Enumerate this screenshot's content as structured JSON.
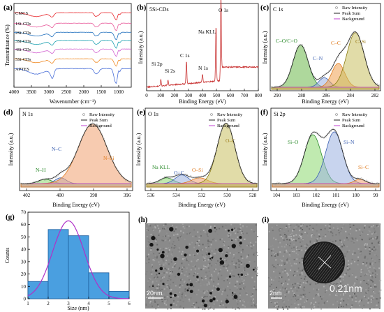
{
  "panels": {
    "a": {
      "label": "(a)",
      "xlabel": "Wavenumber (cm⁻¹)",
      "ylabel": "Transmittance (%)",
      "xticks": [
        "4000",
        "3500",
        "3000",
        "2500",
        "2000",
        "1500",
        "1000"
      ],
      "legend": [
        "CMCS",
        "1Si-CDs",
        "2Si-CDs",
        "3Si-CDs",
        "4Si-CDs",
        "5Si-CDs",
        "APTES"
      ],
      "colors": [
        "#e8262b",
        "#e85a9b",
        "#1f6fbd",
        "#1aa0b0",
        "#d25fd0",
        "#f08a24",
        "#4a6fd8"
      ]
    },
    "b": {
      "label": "(b)",
      "title": "5Si-CDs",
      "xlabel": "Binding Energy (eV)",
      "ylabel": "Intensity (a.u.)",
      "xticks": [
        "0",
        "100",
        "200",
        "300",
        "400",
        "500",
        "600",
        "700",
        "800"
      ],
      "peaks": [
        "Si 2p",
        "Si 2s",
        "C 1s",
        "N 1s",
        "Na KLL",
        "O 1s"
      ]
    },
    "c": {
      "label": "(c)",
      "title": "C 1s",
      "xlabel": "Binding Energy (eV)",
      "ylabel": "Intensity (a.u.)",
      "xticks": [
        "290",
        "288",
        "286",
        "284",
        "282"
      ],
      "legend": [
        "Raw Intensity",
        "Peak Sum",
        "Background"
      ],
      "peaks": [
        "C–O/C=O",
        "C–N",
        "C–C",
        "C–Si"
      ]
    },
    "d": {
      "label": "(d)",
      "title": "N 1s",
      "xlabel": "Binding Energy (eV)",
      "ylabel": "Intensity (a.u.)",
      "xticks": [
        "402",
        "400",
        "398",
        "396"
      ],
      "legend": [
        "Raw Intensity",
        "Peak Sum",
        "Background"
      ],
      "peaks": [
        "N–H",
        "N–C",
        "N–Si"
      ]
    },
    "e": {
      "label": "(e)",
      "title": "O 1s",
      "xlabel": "Binding Energy (eV)",
      "ylabel": "Intensity (a.u.)",
      "xticks": [
        "536",
        "534",
        "532",
        "530",
        "528"
      ],
      "legend": [
        "Raw Intensity",
        "Peak Sum",
        "Background"
      ],
      "peaks": [
        "Na KLL",
        "O=C",
        "O–Si",
        "O–C"
      ]
    },
    "f": {
      "label": "(f)",
      "title": "Si 2p",
      "xlabel": "Binding Energy (eV)",
      "ylabel": "Intensity (a.u.)",
      "xticks": [
        "104",
        "103",
        "102",
        "101",
        "100",
        "99"
      ],
      "legend": [
        "Raw Intensity",
        "Peak Sum",
        "Background"
      ],
      "peaks": [
        "Si–O",
        "Si–N",
        "Si–C"
      ]
    },
    "g": {
      "label": "(g)",
      "xlabel": "Size (nm)",
      "ylabel": "Counts",
      "xticks": [
        "1",
        "2",
        "3",
        "4",
        "5",
        "6"
      ],
      "yticks": [
        "0",
        "10",
        "20",
        "30",
        "40",
        "50",
        "60",
        "70"
      ]
    },
    "h": {
      "label": "(h)",
      "scale": "20nm"
    },
    "i": {
      "label": "(i)",
      "scale": "2nm",
      "lattice": "0.21nm"
    }
  },
  "chart_data": [
    {
      "panel": "a",
      "type": "line",
      "x": [
        4000,
        3500,
        3300,
        3000,
        2900,
        2500,
        2000,
        1650,
        1550,
        1400,
        1100,
        1000,
        950,
        700
      ],
      "series": [
        {
          "name": "CMCS",
          "values": [
            10,
            9,
            8,
            9,
            8.5,
            10,
            10,
            7,
            8,
            8.5,
            5,
            6,
            9,
            10
          ]
        },
        {
          "name": "1Si-CDs",
          "values": [
            10,
            9.5,
            8.5,
            9,
            8.8,
            10,
            10,
            8,
            8.2,
            8.8,
            6,
            7,
            9,
            10
          ]
        },
        {
          "name": "2Si-CDs",
          "values": [
            10,
            9.6,
            9,
            9.4,
            9,
            10,
            10,
            8.5,
            8.6,
            9,
            6.5,
            7.5,
            9.2,
            10
          ]
        },
        {
          "name": "3Si-CDs",
          "values": [
            10,
            9.6,
            9,
            9.4,
            9,
            10,
            10,
            8.5,
            8.6,
            9,
            6.5,
            7.5,
            9.2,
            10
          ]
        },
        {
          "name": "4Si-CDs",
          "values": [
            10,
            9.6,
            9,
            9.4,
            9,
            10,
            10,
            8.5,
            8.6,
            9,
            6.5,
            7.5,
            9.2,
            10
          ]
        },
        {
          "name": "5Si-CDs",
          "values": [
            10,
            9.6,
            9,
            9.4,
            9,
            10,
            10,
            8.5,
            8.6,
            9,
            6.5,
            7.5,
            9.2,
            10
          ]
        },
        {
          "name": "APTES",
          "values": [
            10,
            10,
            9,
            9.5,
            7.5,
            10,
            10,
            9.5,
            9,
            9,
            3,
            4,
            8.5,
            10
          ]
        }
      ]
    },
    {
      "panel": "b",
      "type": "line",
      "x": [
        0,
        100,
        150,
        280,
        400,
        500,
        530,
        800
      ],
      "series": [
        {
          "name": "5Si-CDs",
          "values": [
            2,
            5,
            5,
            35,
            18,
            70,
            95,
            30
          ]
        }
      ]
    },
    {
      "panel": "c",
      "type": "line",
      "x": [
        290,
        288.5,
        287,
        286,
        285,
        284.5,
        284,
        283.5,
        282
      ],
      "series": [
        {
          "name": "Peak Sum",
          "values": [
            5,
            60,
            35,
            20,
            55,
            78,
            85,
            70,
            5
          ]
        },
        {
          "name": "C–O/C=O",
          "values": [
            3,
            58,
            20,
            3,
            0,
            0,
            0,
            0,
            0
          ]
        },
        {
          "name": "C–N",
          "values": [
            0,
            0,
            5,
            14,
            5,
            0,
            0,
            0,
            0
          ]
        },
        {
          "name": "C–C",
          "values": [
            0,
            0,
            0,
            8,
            30,
            25,
            10,
            0,
            0
          ]
        },
        {
          "name": "C–Si",
          "values": [
            0,
            0,
            0,
            0,
            10,
            55,
            75,
            62,
            3
          ]
        }
      ]
    },
    {
      "panel": "d",
      "type": "line",
      "x": [
        402,
        400.5,
        400,
        399.2,
        398,
        396.5,
        396
      ],
      "series": [
        {
          "name": "Peak Sum",
          "values": [
            3,
            10,
            14,
            30,
            90,
            20,
            5
          ]
        },
        {
          "name": "N–H",
          "values": [
            0,
            7,
            8,
            3,
            0,
            0,
            0
          ]
        },
        {
          "name": "N–C",
          "values": [
            0,
            0,
            6,
            10,
            2,
            0,
            0
          ]
        },
        {
          "name": "N–Si",
          "values": [
            0,
            3,
            8,
            25,
            90,
            20,
            5
          ]
        }
      ]
    },
    {
      "panel": "e",
      "type": "line",
      "x": [
        536,
        535,
        534,
        532.5,
        531,
        530,
        528
      ],
      "series": [
        {
          "name": "Peak Sum",
          "values": [
            5,
            10,
            18,
            12,
            25,
            90,
            5
          ]
        },
        {
          "name": "Na KLL",
          "values": [
            3,
            8,
            5,
            0,
            0,
            0,
            0
          ]
        },
        {
          "name": "O=C",
          "values": [
            0,
            5,
            14,
            3,
            0,
            0,
            0
          ]
        },
        {
          "name": "O–Si",
          "values": [
            0,
            0,
            3,
            12,
            5,
            0,
            0
          ]
        },
        {
          "name": "O–C",
          "values": [
            0,
            0,
            0,
            3,
            20,
            90,
            5
          ]
        }
      ]
    },
    {
      "panel": "f",
      "type": "line",
      "x": [
        104,
        103,
        102,
        101.5,
        101,
        100.5,
        100,
        99
      ],
      "series": [
        {
          "name": "Peak Sum",
          "values": [
            3,
            20,
            80,
            85,
            90,
            50,
            15,
            3
          ]
        },
        {
          "name": "Si–O",
          "values": [
            2,
            15,
            62,
            50,
            15,
            3,
            0,
            0
          ]
        },
        {
          "name": "Si–N",
          "values": [
            0,
            2,
            18,
            45,
            70,
            40,
            5,
            0
          ]
        },
        {
          "name": "Si–C",
          "values": [
            0,
            0,
            0,
            0,
            2,
            5,
            8,
            2
          ]
        }
      ]
    },
    {
      "panel": "g",
      "type": "bar",
      "categories": [
        "1-2",
        "2-3",
        "3-4",
        "4-5",
        "5-6"
      ],
      "values": [
        14,
        56,
        51,
        21,
        6
      ],
      "ylim": [
        0,
        70
      ],
      "fit_center": 3.0
    }
  ]
}
